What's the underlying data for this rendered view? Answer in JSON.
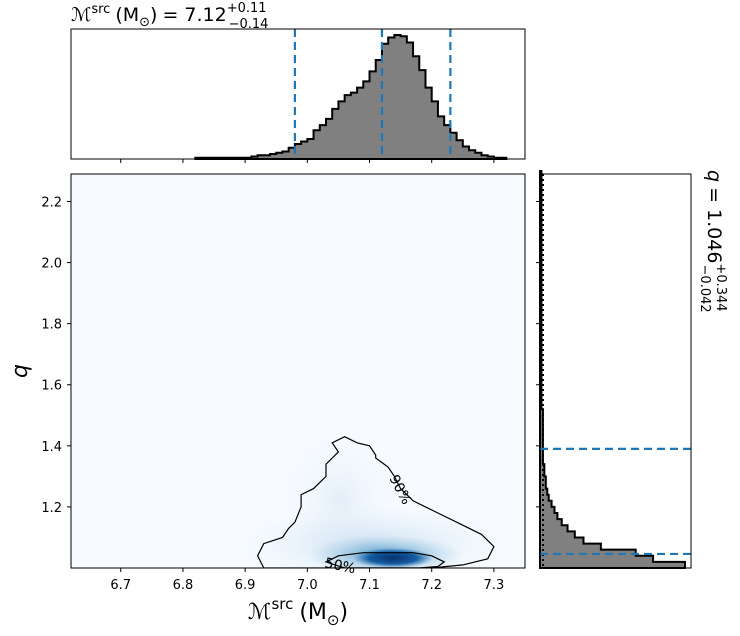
{
  "chart_data": {
    "type": "corner",
    "top_title": {
      "symbol": "ℳ",
      "sup": "src",
      "unit": "(M",
      "unit_sub": "⊙",
      "unit_close": ")",
      "eq": "= 7.12",
      "plus": "+0.11",
      "minus": "−0.14"
    },
    "right_title": {
      "symbol": "q",
      "eq": "= 1.046",
      "plus": "+0.344",
      "minus": "−0.042"
    },
    "xlabel": {
      "symbol": "ℳ",
      "sup": "src",
      "unit": "(M",
      "unit_sub": "⊙",
      "unit_close": ")"
    },
    "ylabel": "q",
    "xlim": [
      6.62,
      7.35
    ],
    "ylim": [
      1.0,
      2.29
    ],
    "xticks": [
      "6.7",
      "6.8",
      "6.9",
      "7.0",
      "7.1",
      "7.2",
      "7.3"
    ],
    "yticks": [
      "1.2",
      "1.4",
      "1.6",
      "1.8",
      "2.0",
      "2.2"
    ],
    "chirp_mass_hist": {
      "x0": 6.82,
      "bin_width": 0.01,
      "values": [
        1,
        1,
        1,
        1,
        1,
        1,
        1,
        1,
        1,
        2,
        3,
        3,
        4,
        5,
        6,
        9,
        12,
        14,
        16,
        23,
        27,
        32,
        40,
        46,
        51,
        53,
        57,
        62,
        70,
        79,
        92,
        97,
        99,
        98,
        93,
        82,
        71,
        57,
        46,
        34,
        27,
        21,
        15,
        10,
        7,
        5,
        3,
        2,
        1,
        1
      ],
      "quantiles": [
        6.98,
        7.12,
        7.23
      ]
    },
    "mass_ratio_hist": {
      "y0": 1.0,
      "bin_width": 0.02,
      "values": [
        100,
        78,
        66,
        42,
        30,
        24,
        19,
        15,
        12,
        10,
        8,
        6,
        5,
        4,
        4,
        3,
        3,
        2,
        2,
        2,
        2,
        2,
        2,
        2,
        2,
        2,
        1,
        1,
        1,
        1,
        1,
        1,
        1,
        1,
        1,
        1,
        1,
        1,
        1,
        1,
        1,
        1,
        1,
        1,
        1,
        1,
        1,
        1,
        1,
        1,
        1,
        1,
        1,
        1,
        1,
        1,
        1,
        1,
        1,
        1,
        1,
        1,
        1,
        1,
        1
      ],
      "quantiles": [
        1.046,
        1.39
      ]
    },
    "contours": [
      {
        "label": "90%",
        "x": [
          6.93,
          6.92,
          6.93,
          6.96,
          6.97,
          6.98,
          6.99,
          6.99,
          7.01,
          7.03,
          7.03,
          7.05,
          7.04,
          7.06,
          7.08,
          7.1,
          7.11,
          7.11,
          7.13,
          7.14,
          7.15,
          7.17,
          7.19,
          7.21,
          7.25,
          7.28,
          7.3,
          7.29,
          7.25,
          7.2,
          7.14,
          7.08,
          7.02,
          6.97,
          6.93
        ],
        "y": [
          1.0,
          1.04,
          1.08,
          1.1,
          1.13,
          1.15,
          1.2,
          1.24,
          1.26,
          1.3,
          1.34,
          1.38,
          1.41,
          1.43,
          1.41,
          1.4,
          1.37,
          1.36,
          1.33,
          1.3,
          1.26,
          1.22,
          1.2,
          1.18,
          1.14,
          1.11,
          1.07,
          1.03,
          1.01,
          1.0,
          1.0,
          1.0,
          1.0,
          1.0,
          1.0
        ]
      },
      {
        "label": "50%",
        "x": [
          7.03,
          7.05,
          7.09,
          7.13,
          7.17,
          7.2,
          7.22,
          7.21,
          7.18,
          7.14,
          7.1,
          7.06,
          7.03
        ],
        "y": [
          1.02,
          1.04,
          1.05,
          1.05,
          1.05,
          1.04,
          1.02,
          1.005,
          1.0,
          1.0,
          1.0,
          1.0,
          1.02
        ]
      }
    ],
    "density_peak": {
      "x": 7.14,
      "y": 1.03
    },
    "colors": {
      "hist_fill": "#808080",
      "hist_edge": "#000000",
      "quantile_line": "#1f77b4",
      "map_low": "#f7fbff",
      "map_high": "#08306b"
    }
  }
}
